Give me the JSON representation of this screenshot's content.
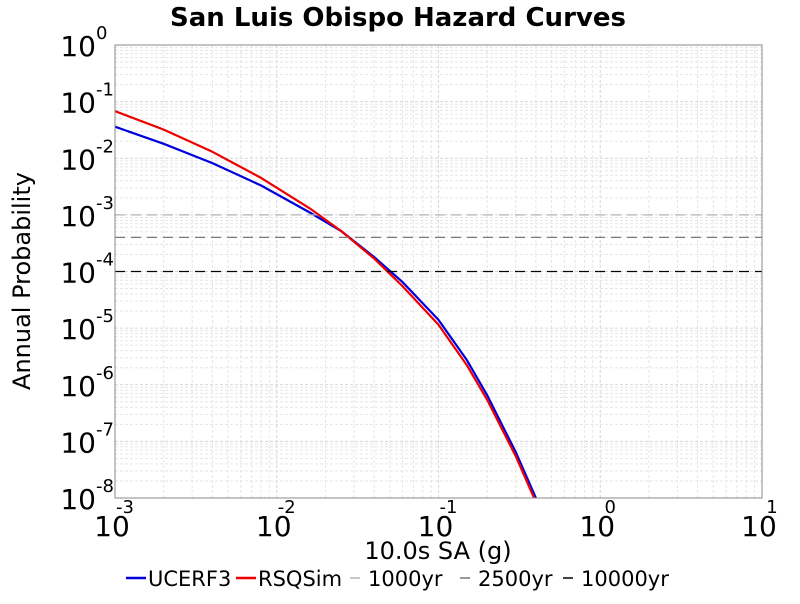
{
  "chart_data": {
    "type": "line",
    "title": "San Luis Obispo Hazard Curves",
    "xlabel": "10.0s SA (g)",
    "ylabel": "Annual Probability",
    "x_scale": "log",
    "y_scale": "log",
    "xlim": [
      0.001,
      10
    ],
    "ylim": [
      1e-08,
      1
    ],
    "grid": true,
    "legend_position": "bottom",
    "x_ticks": [
      {
        "base": "10",
        "exp": "-3",
        "value": 0.001
      },
      {
        "base": "10",
        "exp": "-2",
        "value": 0.01
      },
      {
        "base": "10",
        "exp": "-1",
        "value": 0.1
      },
      {
        "base": "10",
        "exp": "0",
        "value": 1
      },
      {
        "base": "10",
        "exp": "1",
        "value": 10
      }
    ],
    "y_ticks": [
      {
        "base": "10",
        "exp": "0",
        "value": 1
      },
      {
        "base": "10",
        "exp": "-1",
        "value": 0.1
      },
      {
        "base": "10",
        "exp": "-2",
        "value": 0.01
      },
      {
        "base": "10",
        "exp": "-3",
        "value": 0.001
      },
      {
        "base": "10",
        "exp": "-4",
        "value": 0.0001
      },
      {
        "base": "10",
        "exp": "-5",
        "value": 1e-05
      },
      {
        "base": "10",
        "exp": "-6",
        "value": 1e-06
      },
      {
        "base": "10",
        "exp": "-7",
        "value": 1e-07
      },
      {
        "base": "10",
        "exp": "-8",
        "value": 1e-08
      }
    ],
    "series": [
      {
        "name": "UCERF3",
        "color": "#0000dd",
        "style": "solid",
        "points": [
          [
            0.001,
            0.036
          ],
          [
            0.002,
            0.018
          ],
          [
            0.004,
            0.0082
          ],
          [
            0.008,
            0.0033
          ],
          [
            0.016,
            0.0011
          ],
          [
            0.025,
            0.00052
          ],
          [
            0.04,
            0.00018
          ],
          [
            0.06,
            6.5e-05
          ],
          [
            0.1,
            1.4e-05
          ],
          [
            0.15,
            2.7e-06
          ],
          [
            0.2,
            6.5e-07
          ],
          [
            0.3,
            6.5e-08
          ],
          [
            0.4,
            1e-08
          ]
        ]
      },
      {
        "name": "RSQSim",
        "color": "#ee0000",
        "style": "solid",
        "points": [
          [
            0.001,
            0.068
          ],
          [
            0.002,
            0.032
          ],
          [
            0.004,
            0.013
          ],
          [
            0.008,
            0.0045
          ],
          [
            0.016,
            0.0013
          ],
          [
            0.025,
            0.00052
          ],
          [
            0.04,
            0.00017
          ],
          [
            0.06,
            5.5e-05
          ],
          [
            0.1,
            1.15e-05
          ],
          [
            0.15,
            2.2e-06
          ],
          [
            0.2,
            5.4e-07
          ],
          [
            0.3,
            5.5e-08
          ],
          [
            0.39,
            1e-08
          ]
        ]
      },
      {
        "name": "1000yr",
        "color": "#b4b4b4",
        "style": "dashed",
        "points": [
          [
            0.001,
            0.001
          ],
          [
            10,
            0.001
          ]
        ]
      },
      {
        "name": "2500yr",
        "color": "#787878",
        "style": "dashed",
        "points": [
          [
            0.001,
            0.0004
          ],
          [
            10,
            0.0004
          ]
        ]
      },
      {
        "name": "10000yr",
        "color": "#000000",
        "style": "dashed",
        "points": [
          [
            0.001,
            0.0001
          ],
          [
            10,
            0.0001
          ]
        ]
      }
    ]
  }
}
